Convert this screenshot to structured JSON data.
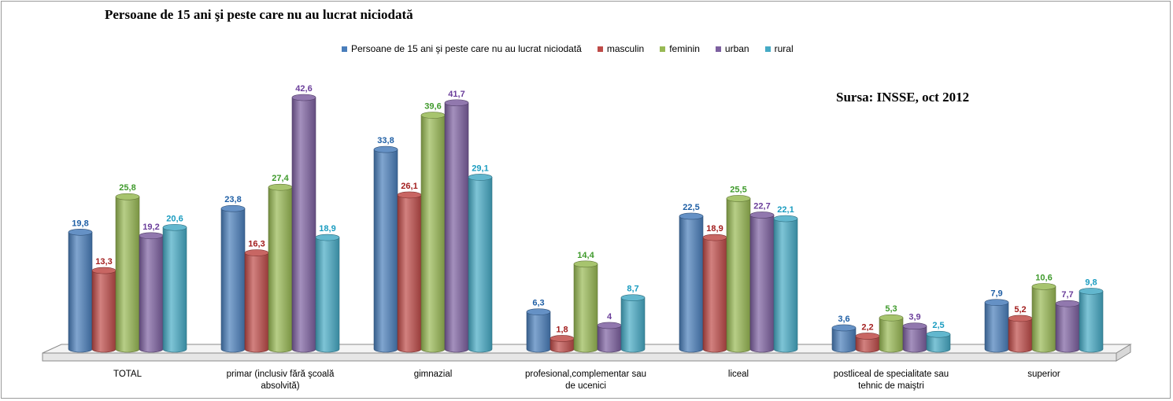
{
  "chart_data": {
    "type": "bar",
    "title": "Persoane de 15 ani şi peste care nu au lucrat niciodată",
    "annotation": "Sursa: INSSE, oct 2012",
    "categories": [
      [
        "TOTAL"
      ],
      [
        "primar (inclusiv fără şcoală",
        "absolvită)"
      ],
      [
        "gimnazial"
      ],
      [
        "profesional,complementar sau",
        "de ucenici"
      ],
      [
        "liceal"
      ],
      [
        "postliceal de specialitate sau",
        "tehnic de maiştri"
      ],
      [
        "superior"
      ]
    ],
    "series": [
      {
        "name": "Persoane de 15 ani şi peste care nu au lucrat niciodată",
        "color": "#4a7ebb",
        "label_color": "#1f5fa5",
        "values": [
          19.8,
          23.8,
          33.8,
          6.3,
          22.5,
          3.6,
          7.9
        ],
        "labels": [
          "19,8",
          "23,8",
          "33,8",
          "6,3",
          "22,5",
          "3,6",
          "7,9"
        ]
      },
      {
        "name": "masculin",
        "color": "#be4b48",
        "label_color": "#a21d1d",
        "values": [
          13.3,
          16.3,
          26.1,
          1.8,
          18.9,
          2.2,
          5.2
        ],
        "labels": [
          "13,3",
          "16,3",
          "26,1",
          "1,8",
          "18,9",
          "2,2",
          "5,2"
        ]
      },
      {
        "name": "feminin",
        "color": "#98b954",
        "label_color": "#3f9a2c",
        "values": [
          25.8,
          27.4,
          39.6,
          14.4,
          25.5,
          5.3,
          10.6
        ],
        "labels": [
          "25,8",
          "27,4",
          "39,6",
          "14,4",
          "25,5",
          "5,3",
          "10,6"
        ]
      },
      {
        "name": "urban",
        "color": "#7d60a0",
        "label_color": "#6a3d9a",
        "values": [
          19.2,
          42.6,
          41.7,
          4,
          22.7,
          3.9,
          7.7
        ],
        "labels": [
          "19,2",
          "42,6",
          "41,7",
          "4",
          "22,7",
          "3,9",
          "7,7"
        ]
      },
      {
        "name": "rural",
        "color": "#46aac5",
        "label_color": "#1a9cc0",
        "values": [
          20.6,
          18.9,
          29.1,
          8.7,
          22.1,
          2.5,
          9.8
        ],
        "labels": [
          "20,6",
          "18,9",
          "29,1",
          "8,7",
          "22,1",
          "2,5",
          "9,8"
        ]
      }
    ],
    "ylim": [
      0,
      45
    ],
    "grid": false,
    "legend_position": "top-center"
  }
}
